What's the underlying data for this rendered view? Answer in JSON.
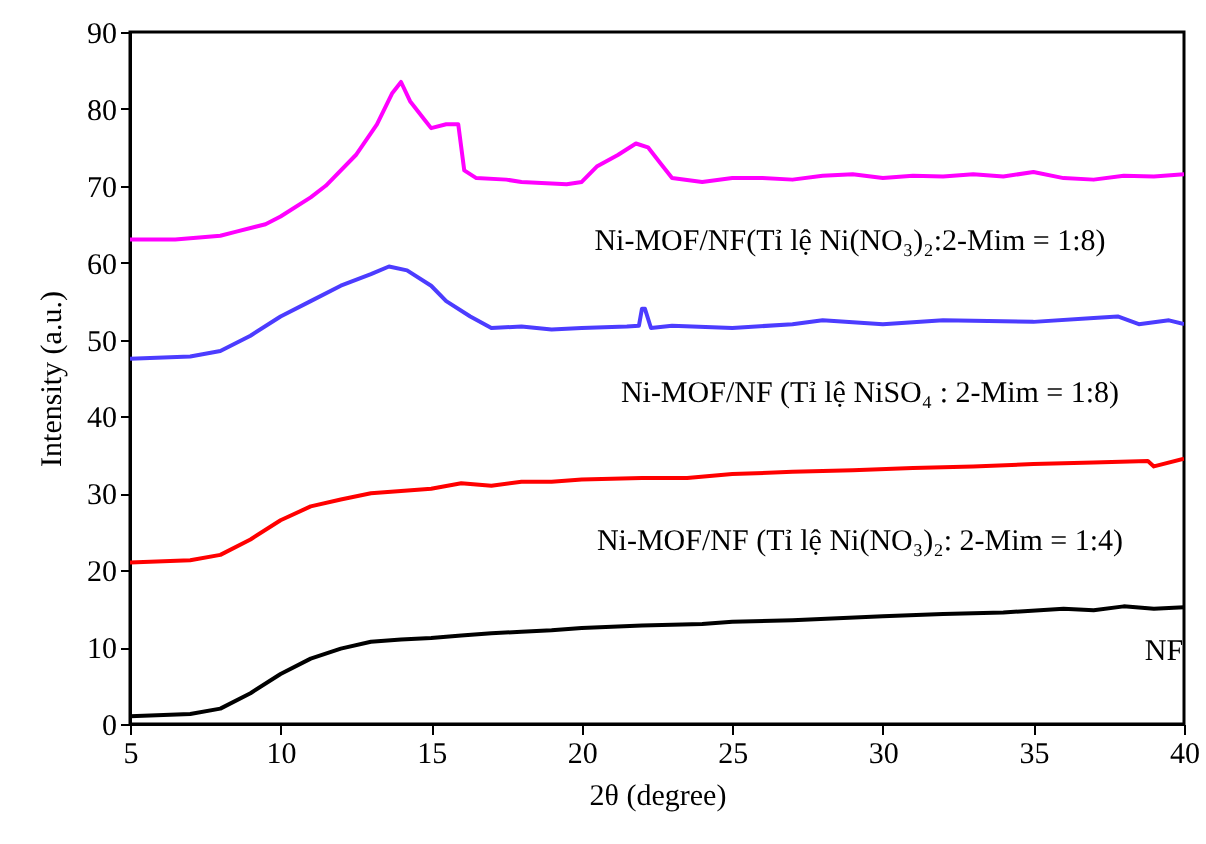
{
  "chart_data": {
    "type": "line",
    "xlabel": "2θ (degree)",
    "ylabel": "Intensity (a.u.)",
    "xlim": [
      5,
      40
    ],
    "xticks": [
      5,
      10,
      15,
      20,
      25,
      30,
      35,
      40
    ],
    "ylim": [
      0,
      90
    ],
    "yticks": [
      0,
      10,
      20,
      30,
      40,
      50,
      60,
      70,
      80,
      90
    ],
    "grid": false,
    "marker": "none",
    "line_style": "solid",
    "series": [
      {
        "name": "Ni-MOF/NF(Tỉ lệ Ni(NO₃)₂:2-Mim = 1:8)",
        "color": "#ff00ff",
        "x": [
          5,
          6.5,
          8,
          8.5,
          9.5,
          10,
          11,
          11.5,
          12.5,
          13.2,
          13.7,
          14,
          14.3,
          14.8,
          15,
          15.5,
          15.9,
          16.1,
          16.5,
          17.5,
          18,
          19.5,
          20,
          20.5,
          21.2,
          21.8,
          22.2,
          22.6,
          23,
          24,
          25,
          26,
          27,
          28,
          29,
          30,
          31,
          32,
          33,
          34,
          35,
          36,
          37,
          38,
          39,
          40
        ],
        "values": [
          63,
          63,
          63.5,
          64,
          65,
          66,
          68.5,
          70,
          74,
          78,
          82,
          83.5,
          81,
          78.5,
          77.5,
          78,
          78,
          72,
          71,
          70.8,
          70.5,
          70.2,
          70.5,
          72.5,
          74,
          75.5,
          75,
          73,
          71,
          70.5,
          71,
          71,
          70.8,
          71.3,
          71.5,
          71,
          71.3,
          71.2,
          71.5,
          71.2,
          71.8,
          71,
          70.8,
          71.3,
          71.2,
          71.5
        ]
      },
      {
        "name": "Ni-MOF/NF (Tỉ lệ NiSO₄ : 2-Mim = 1:8)",
        "color": "#4c3cff",
        "x": [
          5,
          7,
          8,
          9,
          10,
          11,
          12,
          13,
          13.6,
          14.2,
          15,
          15.5,
          16.3,
          17,
          18,
          19,
          20,
          21.5,
          21.9,
          22,
          22.1,
          22.3,
          23,
          25,
          27,
          28,
          30,
          32,
          35,
          37,
          37.8,
          38.5,
          39.5,
          40
        ],
        "values": [
          47.5,
          47.8,
          48.5,
          50.5,
          53,
          55,
          57,
          58.5,
          59.5,
          59,
          57,
          55,
          53,
          51.5,
          51.7,
          51.3,
          51.5,
          51.7,
          51.8,
          54,
          54,
          51.5,
          51.8,
          51.5,
          52,
          52.5,
          52,
          52.5,
          52.3,
          52.8,
          53,
          52,
          52.5,
          52
        ]
      },
      {
        "name": "Ni-MOF/NF (Tỉ lệ Ni(NO₃)₂: 2-Mim = 1:4)",
        "color": "#ff0000",
        "x": [
          5,
          7,
          8,
          9,
          10,
          11,
          12,
          13,
          14,
          15,
          16,
          17,
          18,
          19,
          20,
          22,
          23.5,
          25,
          27,
          29,
          31,
          33,
          35,
          37,
          38.8,
          39,
          40
        ],
        "values": [
          21,
          21.3,
          22,
          24,
          26.5,
          28.3,
          29.2,
          30,
          30.3,
          30.6,
          31.3,
          31,
          31.5,
          31.5,
          31.8,
          32,
          32,
          32.5,
          32.8,
          33,
          33.3,
          33.5,
          33.8,
          34,
          34.2,
          33.5,
          34.5
        ]
      },
      {
        "name": "NF",
        "color": "#000000",
        "x": [
          5,
          7,
          8,
          9,
          10,
          11,
          12,
          13,
          14,
          15,
          16,
          17,
          18,
          19,
          20,
          22,
          24,
          25,
          27,
          30,
          32,
          34,
          36,
          37,
          38,
          39,
          40
        ],
        "values": [
          1,
          1.3,
          2,
          4,
          6.5,
          8.5,
          9.8,
          10.7,
          11,
          11.2,
          11.5,
          11.8,
          12,
          12.2,
          12.5,
          12.8,
          13,
          13.3,
          13.5,
          14,
          14.3,
          14.5,
          15,
          14.8,
          15.3,
          15,
          15.2
        ]
      }
    ]
  }
}
